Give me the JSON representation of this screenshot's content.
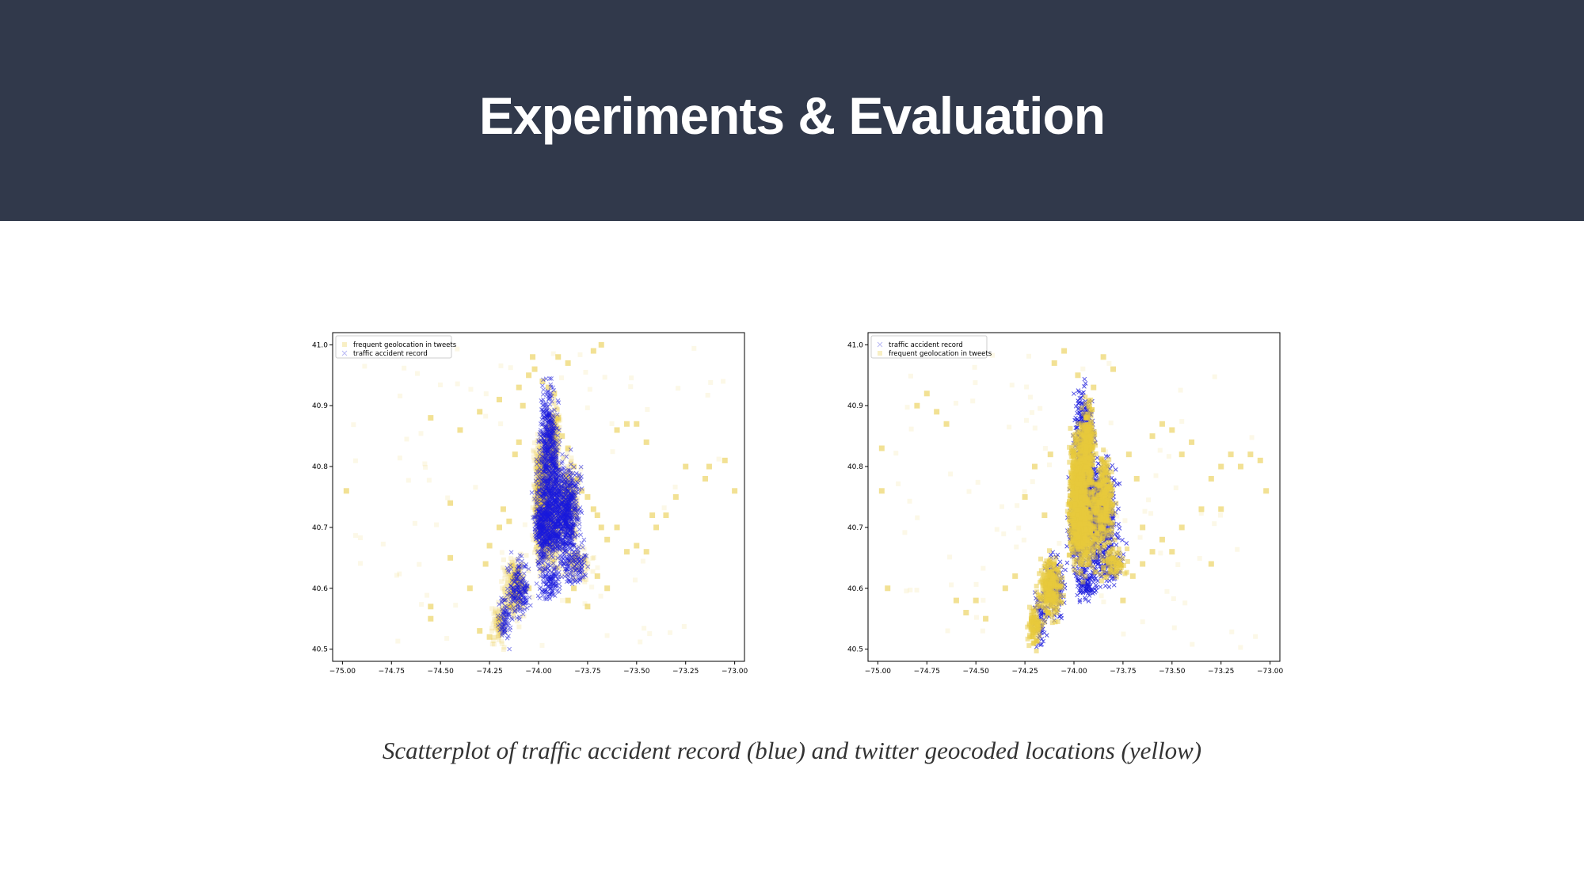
{
  "slide": {
    "title": "Experiments & Evaluation",
    "caption": "Scatterplot of traffic accident record (blue) and twitter geocoded locations (yellow)"
  },
  "colors": {
    "header_bg": "#31394b",
    "accident": "#1a1adc",
    "tweet": "#e8c93c"
  },
  "chart_data": [
    {
      "type": "scatter",
      "title": "",
      "xlabel": "",
      "ylabel": "",
      "xlim": [
        -75.05,
        -72.95
      ],
      "ylim": [
        40.48,
        41.02
      ],
      "xticks": [
        -75.0,
        -74.75,
        -74.5,
        -74.25,
        -74.0,
        -73.75,
        -73.5,
        -73.25,
        -73.0
      ],
      "xtick_labels": [
        "−75.00",
        "−74.75",
        "−74.50",
        "−74.25",
        "−74.00",
        "−73.75",
        "−73.50",
        "−73.25",
        "−73.00"
      ],
      "yticks": [
        40.5,
        40.6,
        40.7,
        40.8,
        40.9,
        41.0
      ],
      "ytick_labels": [
        "40.5",
        "40.6",
        "40.7",
        "40.8",
        "40.9",
        "41.0"
      ],
      "legend": {
        "placement": "top-left",
        "entries": [
          "frequent geolocation in tweets",
          "traffic accident record"
        ]
      },
      "draw_order": [
        "tweets",
        "accidents"
      ],
      "series": [
        {
          "name": "frequent geolocation in tweets",
          "color": "#e8c93c",
          "marker": "square",
          "points": [
            [
              -74.98,
              40.76
            ],
            [
              -74.55,
              40.88
            ],
            [
              -74.45,
              40.74
            ],
            [
              -74.55,
              40.57
            ],
            [
              -74.55,
              40.55
            ],
            [
              -74.45,
              40.65
            ],
            [
              -74.35,
              40.6
            ],
            [
              -74.27,
              40.64
            ],
            [
              -74.25,
              40.67
            ],
            [
              -74.2,
              40.7
            ],
            [
              -74.18,
              40.73
            ],
            [
              -74.15,
              40.71
            ],
            [
              -74.12,
              40.82
            ],
            [
              -74.1,
              40.84
            ],
            [
              -74.08,
              40.9
            ],
            [
              -74.05,
              40.95
            ],
            [
              -74.03,
              40.98
            ],
            [
              -74.02,
              40.96
            ],
            [
              -73.98,
              40.94
            ],
            [
              -73.95,
              40.93
            ],
            [
              -73.92,
              40.92
            ],
            [
              -73.9,
              40.88
            ],
            [
              -73.88,
              40.85
            ],
            [
              -73.85,
              40.83
            ],
            [
              -73.82,
              40.8
            ],
            [
              -73.8,
              40.78
            ],
            [
              -73.78,
              40.76
            ],
            [
              -73.75,
              40.75
            ],
            [
              -73.72,
              40.73
            ],
            [
              -73.7,
              40.72
            ],
            [
              -73.68,
              40.7
            ],
            [
              -73.65,
              40.68
            ],
            [
              -73.6,
              40.7
            ],
            [
              -73.55,
              40.66
            ],
            [
              -73.5,
              40.67
            ],
            [
              -73.45,
              40.66
            ],
            [
              -73.42,
              40.72
            ],
            [
              -73.4,
              40.7
            ],
            [
              -73.35,
              40.72
            ],
            [
              -73.3,
              40.75
            ],
            [
              -73.25,
              40.8
            ],
            [
              -73.15,
              40.78
            ],
            [
              -73.13,
              40.8
            ],
            [
              -73.05,
              40.81
            ],
            [
              -73.0,
              40.76
            ],
            [
              -73.75,
              40.57
            ],
            [
              -73.7,
              40.62
            ],
            [
              -73.65,
              40.6
            ],
            [
              -73.6,
              40.86
            ],
            [
              -73.55,
              40.87
            ],
            [
              -73.5,
              40.87
            ],
            [
              -73.45,
              40.84
            ],
            [
              -73.72,
              40.99
            ],
            [
              -73.68,
              41.0
            ],
            [
              -73.9,
              40.98
            ],
            [
              -73.85,
              40.97
            ],
            [
              -74.1,
              40.93
            ],
            [
              -74.2,
              40.91
            ],
            [
              -74.3,
              40.89
            ],
            [
              -74.4,
              40.86
            ],
            [
              -74.05,
              40.6
            ],
            [
              -74.1,
              40.58
            ],
            [
              -74.15,
              40.57
            ],
            [
              -74.2,
              40.55
            ],
            [
              -74.25,
              40.52
            ],
            [
              -74.3,
              40.53
            ],
            [
              -74.12,
              40.62
            ],
            [
              -73.85,
              40.58
            ],
            [
              -73.82,
              40.6
            ]
          ]
        },
        {
          "name": "traffic accident record",
          "color": "#1a1adc",
          "marker": "x",
          "points": []
        }
      ]
    },
    {
      "type": "scatter",
      "title": "",
      "xlabel": "",
      "ylabel": "",
      "xlim": [
        -75.05,
        -72.95
      ],
      "ylim": [
        40.48,
        41.02
      ],
      "xticks": [
        -75.0,
        -74.75,
        -74.5,
        -74.25,
        -74.0,
        -73.75,
        -73.5,
        -73.25,
        -73.0
      ],
      "xtick_labels": [
        "−75.00",
        "−74.75",
        "−74.50",
        "−74.25",
        "−74.00",
        "−73.75",
        "−73.50",
        "−73.25",
        "−73.00"
      ],
      "yticks": [
        40.5,
        40.6,
        40.7,
        40.8,
        40.9,
        41.0
      ],
      "ytick_labels": [
        "40.5",
        "40.6",
        "40.7",
        "40.8",
        "40.9",
        "41.0"
      ],
      "legend": {
        "placement": "top-left",
        "entries": [
          "traffic accident record",
          "frequent geolocation in tweets"
        ]
      },
      "draw_order": [
        "accidents",
        "tweets"
      ],
      "series": [
        {
          "name": "traffic accident record",
          "color": "#1a1adc",
          "marker": "x",
          "points": []
        },
        {
          "name": "frequent geolocation in tweets",
          "color": "#e8c93c",
          "marker": "square",
          "points": [
            [
              -74.98,
              40.76
            ],
            [
              -74.98,
              40.83
            ],
            [
              -74.95,
              40.6
            ],
            [
              -74.8,
              40.9
            ],
            [
              -74.75,
              40.92
            ],
            [
              -74.7,
              40.89
            ],
            [
              -74.65,
              40.87
            ],
            [
              -74.6,
              40.58
            ],
            [
              -74.55,
              40.56
            ],
            [
              -74.5,
              40.58
            ],
            [
              -74.45,
              40.55
            ],
            [
              -74.35,
              40.6
            ],
            [
              -74.3,
              40.62
            ],
            [
              -74.25,
              40.75
            ],
            [
              -74.2,
              40.8
            ],
            [
              -74.15,
              40.72
            ],
            [
              -74.12,
              40.82
            ],
            [
              -74.1,
              40.97
            ],
            [
              -74.05,
              40.99
            ],
            [
              -73.98,
              40.95
            ],
            [
              -73.9,
              40.93
            ],
            [
              -73.85,
              40.98
            ],
            [
              -73.8,
              40.96
            ],
            [
              -73.72,
              40.82
            ],
            [
              -73.68,
              40.78
            ],
            [
              -73.65,
              40.7
            ],
            [
              -73.6,
              40.85
            ],
            [
              -73.55,
              40.87
            ],
            [
              -73.5,
              40.86
            ],
            [
              -73.45,
              40.82
            ],
            [
              -73.4,
              40.84
            ],
            [
              -73.35,
              40.73
            ],
            [
              -73.3,
              40.78
            ],
            [
              -73.25,
              40.8
            ],
            [
              -73.2,
              40.82
            ],
            [
              -73.15,
              40.8
            ],
            [
              -73.1,
              40.82
            ],
            [
              -73.05,
              40.81
            ],
            [
              -73.02,
              40.76
            ],
            [
              -73.75,
              40.58
            ],
            [
              -73.7,
              40.62
            ],
            [
              -73.65,
              40.64
            ],
            [
              -73.6,
              40.66
            ],
            [
              -73.55,
              40.68
            ],
            [
              -73.5,
              40.66
            ],
            [
              -73.45,
              40.7
            ],
            [
              -73.3,
              40.64
            ],
            [
              -73.25,
              40.73
            ]
          ]
        }
      ]
    }
  ]
}
